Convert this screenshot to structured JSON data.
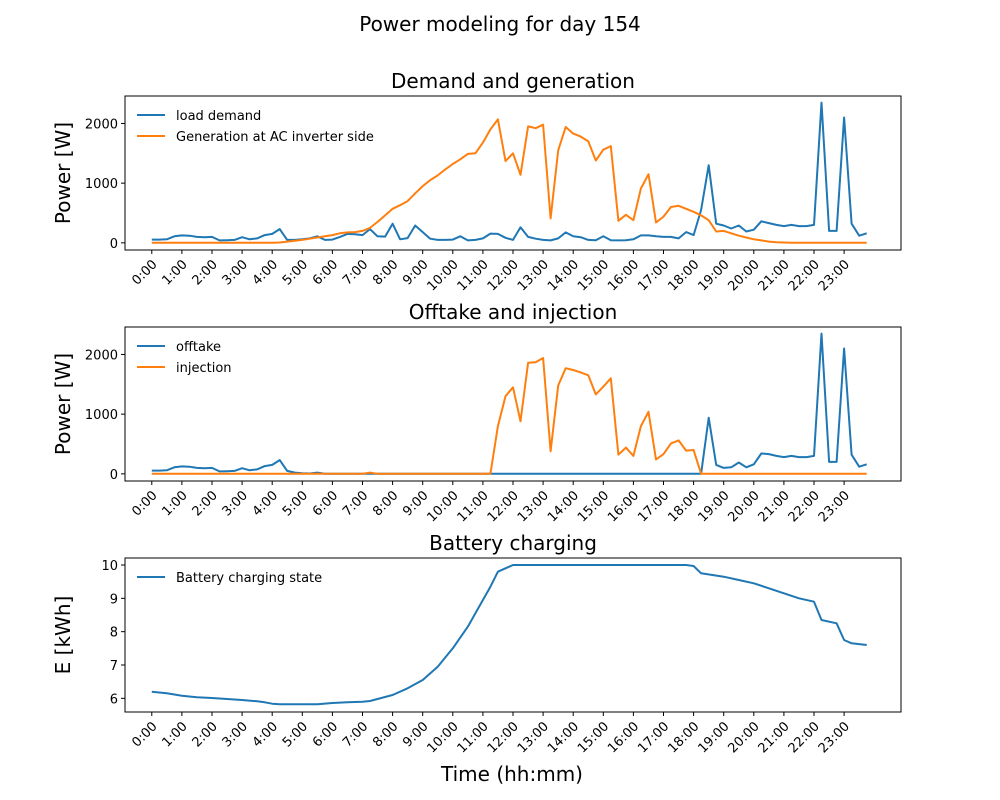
{
  "suptitle": "Power modeling for day 154",
  "xlabel": "Time (hh:mm)",
  "colors": {
    "blue": "#1f77b4",
    "orange": "#ff7f0e"
  },
  "chart_data": [
    {
      "type": "line",
      "title": "Demand and generation",
      "ylabel": "Power [W]",
      "ylim": [
        -120,
        2460
      ],
      "yticks": [
        0,
        1000,
        2000
      ],
      "xlim": [
        -0.89,
        24.89
      ],
      "xticks": [
        "0:00",
        "1:00",
        "2:00",
        "3:00",
        "4:00",
        "5:00",
        "6:00",
        "7:00",
        "8:00",
        "9:00",
        "10:00",
        "11:00",
        "12:00",
        "13:00",
        "14:00",
        "15:00",
        "16:00",
        "17:00",
        "18:00",
        "19:00",
        "20:00",
        "21:00",
        "22:00",
        "23:00"
      ],
      "legend": "top-left",
      "grid": false,
      "series": [
        {
          "name": "load demand",
          "color": "#1f77b4",
          "x": [
            0,
            0.25,
            0.5,
            0.75,
            1,
            1.25,
            1.5,
            1.75,
            2,
            2.25,
            2.5,
            2.75,
            3,
            3.25,
            3.5,
            3.75,
            4,
            4.25,
            4.5,
            4.75,
            5,
            5.25,
            5.5,
            5.75,
            6,
            6.25,
            6.5,
            6.75,
            7,
            7.25,
            7.5,
            7.75,
            8,
            8.25,
            8.5,
            8.75,
            9,
            9.25,
            9.5,
            9.75,
            10,
            10.25,
            10.5,
            10.75,
            11,
            11.25,
            11.5,
            11.75,
            12,
            12.25,
            12.5,
            12.75,
            13,
            13.25,
            13.5,
            13.75,
            14,
            14.25,
            14.5,
            14.75,
            15,
            15.25,
            15.5,
            15.75,
            16,
            16.25,
            16.5,
            16.75,
            17,
            17.25,
            17.5,
            17.75,
            18,
            18.25,
            18.5,
            18.75,
            19,
            19.25,
            19.5,
            19.75,
            20,
            20.25,
            20.5,
            20.75,
            21,
            21.25,
            21.5,
            21.75,
            22,
            22.25,
            22.5,
            22.75,
            23,
            23.25,
            23.5,
            23.75
          ],
          "y": [
            55,
            55,
            60,
            110,
            125,
            120,
            100,
            95,
            100,
            40,
            45,
            50,
            95,
            60,
            75,
            130,
            150,
            230,
            50,
            50,
            60,
            75,
            110,
            50,
            55,
            100,
            150,
            145,
            130,
            230,
            110,
            105,
            320,
            60,
            80,
            290,
            180,
            70,
            50,
            50,
            55,
            110,
            40,
            50,
            75,
            155,
            150,
            85,
            50,
            260,
            100,
            70,
            50,
            40,
            75,
            175,
            110,
            95,
            50,
            45,
            110,
            45,
            40,
            45,
            60,
            125,
            125,
            110,
            100,
            100,
            75,
            180,
            130,
            550,
            1300,
            320,
            290,
            240,
            290,
            190,
            220,
            360,
            330,
            300,
            280,
            300,
            280,
            280,
            300,
            2350,
            200,
            200,
            2100,
            320,
            120,
            160
          ]
        },
        {
          "name": "Generation at AC inverter side",
          "color": "#ff7f0e",
          "x": [
            0,
            0.25,
            0.5,
            0.75,
            1,
            1.25,
            1.5,
            1.75,
            2,
            2.25,
            2.5,
            2.75,
            3,
            3.25,
            3.5,
            3.75,
            4,
            4.25,
            4.5,
            4.75,
            5,
            5.25,
            5.5,
            5.75,
            6,
            6.25,
            6.5,
            6.75,
            7,
            7.25,
            7.5,
            7.75,
            8,
            8.25,
            8.5,
            8.75,
            9,
            9.25,
            9.5,
            9.75,
            10,
            10.25,
            10.5,
            10.75,
            11,
            11.25,
            11.5,
            11.75,
            12,
            12.25,
            12.5,
            12.75,
            13,
            13.25,
            13.5,
            13.75,
            14,
            14.25,
            14.5,
            14.75,
            15,
            15.25,
            15.5,
            15.75,
            16,
            16.25,
            16.5,
            16.75,
            17,
            17.25,
            17.5,
            17.75,
            18,
            18.25,
            18.5,
            18.75,
            19,
            19.25,
            19.5,
            19.75,
            20,
            20.25,
            20.5,
            20.75,
            21,
            21.25,
            21.5,
            21.75,
            22,
            22.25,
            22.5,
            22.75,
            23,
            23.25,
            23.5,
            23.75
          ],
          "y": [
            0,
            0,
            0,
            0,
            0,
            0,
            0,
            0,
            0,
            0,
            0,
            0,
            0,
            0,
            0,
            0,
            0,
            5,
            20,
            35,
            50,
            70,
            90,
            110,
            130,
            160,
            175,
            180,
            200,
            250,
            350,
            460,
            570,
            630,
            700,
            830,
            950,
            1050,
            1130,
            1230,
            1320,
            1400,
            1490,
            1500,
            1680,
            1900,
            2070,
            1370,
            1500,
            1140,
            1950,
            1920,
            1980,
            410,
            1550,
            1940,
            1830,
            1780,
            1700,
            1380,
            1560,
            1620,
            370,
            470,
            380,
            910,
            1150,
            340,
            440,
            600,
            620,
            570,
            520,
            460,
            380,
            190,
            200,
            160,
            120,
            90,
            60,
            40,
            20,
            10,
            5,
            0,
            0,
            0,
            0,
            0,
            0,
            0,
            0,
            0,
            0,
            0
          ]
        }
      ]
    },
    {
      "type": "line",
      "title": "Offtake and injection",
      "ylabel": "Power [W]",
      "ylim": [
        -120,
        2460
      ],
      "yticks": [
        0,
        1000,
        2000
      ],
      "xlim": [
        -0.89,
        24.89
      ],
      "xticks": [
        "0:00",
        "1:00",
        "2:00",
        "3:00",
        "4:00",
        "5:00",
        "6:00",
        "7:00",
        "8:00",
        "9:00",
        "10:00",
        "11:00",
        "12:00",
        "13:00",
        "14:00",
        "15:00",
        "16:00",
        "17:00",
        "18:00",
        "19:00",
        "20:00",
        "21:00",
        "22:00",
        "23:00"
      ],
      "legend": "top-left",
      "grid": false,
      "series": [
        {
          "name": "offtake",
          "color": "#1f77b4",
          "x": [
            0,
            0.25,
            0.5,
            0.75,
            1,
            1.25,
            1.5,
            1.75,
            2,
            2.25,
            2.5,
            2.75,
            3,
            3.25,
            3.5,
            3.75,
            4,
            4.25,
            4.5,
            4.75,
            5,
            5.25,
            5.5,
            5.75,
            6,
            6.25,
            6.5,
            6.75,
            7,
            7.25,
            7.5,
            7.75,
            8,
            8.25,
            8.5,
            8.75,
            9,
            9.25,
            9.5,
            9.75,
            10,
            10.25,
            10.5,
            10.75,
            11,
            11.25,
            11.5,
            11.75,
            12,
            12.25,
            12.5,
            12.75,
            13,
            13.25,
            13.5,
            13.75,
            14,
            14.25,
            14.5,
            14.75,
            15,
            15.25,
            15.5,
            15.75,
            16,
            16.25,
            16.5,
            16.75,
            17,
            17.25,
            17.5,
            17.75,
            18,
            18.25,
            18.5,
            18.75,
            19,
            19.25,
            19.5,
            19.75,
            20,
            20.25,
            20.5,
            20.75,
            21,
            21.25,
            21.5,
            21.75,
            22,
            22.25,
            22.5,
            22.75,
            23,
            23.25,
            23.5,
            23.75
          ],
          "y": [
            55,
            55,
            60,
            110,
            125,
            120,
            100,
            95,
            100,
            40,
            45,
            50,
            95,
            60,
            75,
            130,
            150,
            230,
            50,
            20,
            10,
            5,
            20,
            0,
            0,
            0,
            0,
            0,
            0,
            0,
            0,
            0,
            0,
            0,
            0,
            0,
            0,
            0,
            0,
            0,
            0,
            0,
            0,
            0,
            0,
            0,
            0,
            0,
            0,
            0,
            0,
            0,
            0,
            0,
            0,
            0,
            0,
            0,
            0,
            0,
            0,
            0,
            0,
            0,
            0,
            0,
            0,
            0,
            0,
            0,
            0,
            0,
            0,
            0,
            940,
            150,
            100,
            110,
            190,
            110,
            160,
            340,
            330,
            300,
            280,
            300,
            280,
            280,
            300,
            2350,
            200,
            200,
            2100,
            320,
            120,
            160
          ]
        },
        {
          "name": "injection",
          "color": "#ff7f0e",
          "x": [
            0,
            0.25,
            0.5,
            0.75,
            1,
            1.25,
            1.5,
            1.75,
            2,
            2.25,
            2.5,
            2.75,
            3,
            3.25,
            3.5,
            3.75,
            4,
            4.25,
            4.5,
            4.75,
            5,
            5.25,
            5.5,
            5.75,
            6,
            6.25,
            6.5,
            6.75,
            7,
            7.25,
            7.5,
            7.75,
            8,
            8.25,
            8.5,
            8.75,
            9,
            9.25,
            9.5,
            9.75,
            10,
            10.25,
            10.5,
            10.75,
            11,
            11.25,
            11.5,
            11.75,
            12,
            12.25,
            12.5,
            12.75,
            13,
            13.25,
            13.5,
            13.75,
            14,
            14.25,
            14.5,
            14.75,
            15,
            15.25,
            15.5,
            15.75,
            16,
            16.25,
            16.5,
            16.75,
            17,
            17.25,
            17.5,
            17.75,
            18,
            18.25,
            18.5,
            18.75,
            19,
            19.25,
            19.5,
            19.75,
            20,
            20.25,
            20.5,
            20.75,
            21,
            21.25,
            21.5,
            21.75,
            22,
            22.25,
            22.5,
            22.75,
            23,
            23.25,
            23.5,
            23.75
          ],
          "y": [
            0,
            0,
            0,
            0,
            0,
            0,
            0,
            0,
            0,
            0,
            0,
            0,
            0,
            0,
            0,
            0,
            0,
            0,
            0,
            0,
            0,
            0,
            0,
            0,
            0,
            0,
            0,
            0,
            0,
            20,
            0,
            0,
            0,
            0,
            0,
            0,
            0,
            0,
            0,
            0,
            0,
            0,
            0,
            0,
            0,
            0,
            800,
            1300,
            1450,
            880,
            1860,
            1870,
            1940,
            380,
            1480,
            1770,
            1740,
            1700,
            1650,
            1330,
            1460,
            1600,
            320,
            440,
            300,
            800,
            1040,
            240,
            330,
            510,
            560,
            390,
            400,
            0,
            0,
            0,
            0,
            0,
            0,
            0,
            0,
            0,
            0,
            0,
            0,
            0,
            0,
            0,
            0,
            0,
            0,
            0,
            0,
            0,
            0,
            0
          ]
        }
      ]
    },
    {
      "type": "line",
      "title": "Battery charging",
      "ylabel": "E [kWh]",
      "ylim": [
        5.59,
        10.21
      ],
      "yticks": [
        6,
        7,
        8,
        9,
        10
      ],
      "xlim": [
        -0.89,
        24.89
      ],
      "xticks": [
        "0:00",
        "1:00",
        "2:00",
        "3:00",
        "4:00",
        "5:00",
        "6:00",
        "7:00",
        "8:00",
        "9:00",
        "10:00",
        "11:00",
        "12:00",
        "13:00",
        "14:00",
        "15:00",
        "16:00",
        "17:00",
        "18:00",
        "19:00",
        "20:00",
        "21:00",
        "22:00",
        "23:00"
      ],
      "legend": "top-left",
      "grid": false,
      "series": [
        {
          "name": "Battery charging state",
          "color": "#1f77b4",
          "x": [
            0,
            0.5,
            1,
            1.5,
            2,
            2.5,
            3,
            3.5,
            3.75,
            4,
            4.25,
            4.5,
            5,
            5.5,
            6,
            6.5,
            7,
            7.25,
            7.5,
            8,
            8.5,
            9,
            9.5,
            10,
            10.5,
            11,
            11.25,
            11.5,
            12,
            13,
            14,
            15,
            16,
            17,
            17.75,
            18,
            18.25,
            19,
            19.5,
            20,
            20.5,
            21,
            21.5,
            22,
            22.25,
            22.75,
            23,
            23.25,
            23.75
          ],
          "y": [
            6.2,
            6.15,
            6.08,
            6.03,
            6.01,
            5.98,
            5.95,
            5.91,
            5.88,
            5.84,
            5.82,
            5.82,
            5.82,
            5.82,
            5.86,
            5.88,
            5.9,
            5.92,
            5.98,
            6.1,
            6.3,
            6.55,
            6.95,
            7.5,
            8.15,
            8.95,
            9.35,
            9.8,
            10,
            10,
            10,
            10,
            10,
            10,
            10,
            9.97,
            9.75,
            9.65,
            9.55,
            9.45,
            9.3,
            9.15,
            9,
            8.9,
            8.35,
            8.25,
            7.75,
            7.65,
            7.6
          ]
        }
      ]
    }
  ]
}
